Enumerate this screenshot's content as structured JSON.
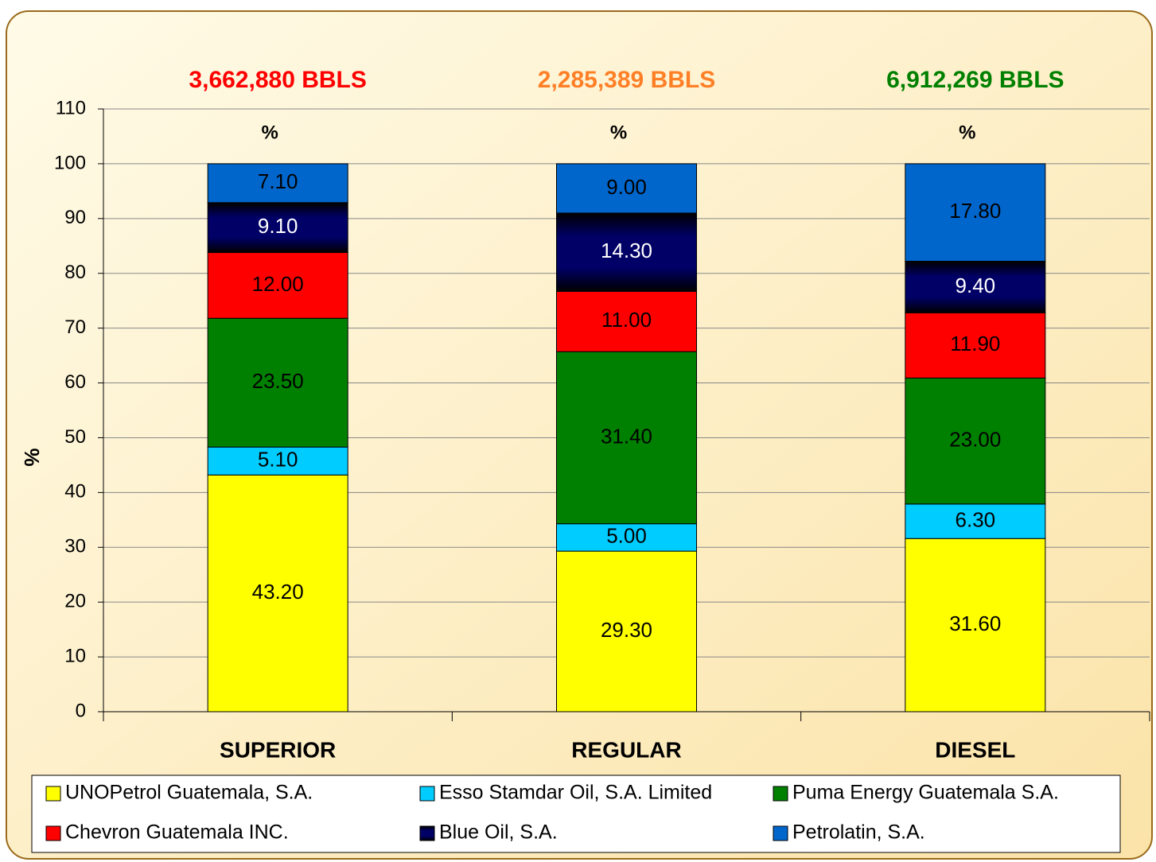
{
  "chart_data": {
    "type": "stacked_bar",
    "annotations": [
      {
        "text": "3,662,880 BBLS",
        "color": "#ff0000"
      },
      {
        "text": "2,285,389 BBLS",
        "color": "#ff7f27"
      },
      {
        "text": "6,912,269 BBLS",
        "color": "#008000"
      }
    ],
    "bar_headers": [
      "%",
      "%",
      "%"
    ],
    "ylabel": "%",
    "categories": [
      "SUPERIOR",
      "REGULAR",
      "DIESEL"
    ],
    "series": [
      {
        "name": "UNOPetrol Guatemala, S.A.",
        "color": "#ffff00",
        "label_color": "#000000",
        "values": [
          43.2,
          29.3,
          31.6
        ],
        "value_labels": [
          "43.20",
          "29.30",
          "31.60"
        ]
      },
      {
        "name": "Esso Stamdar Oil, S.A. Limited",
        "color": "#00ccff",
        "label_color": "#000000",
        "values": [
          5.1,
          5.0,
          6.3
        ],
        "value_labels": [
          "5.10",
          "5.00",
          "6.30"
        ]
      },
      {
        "name": "Puma Energy Guatemala S.A.",
        "color": "#008000",
        "label_color": "#000000",
        "values": [
          23.5,
          31.4,
          23.0
        ],
        "value_labels": [
          "23.50",
          "31.40",
          "23.00"
        ]
      },
      {
        "name": "Chevron Guatemala INC.",
        "color": "#ff0000",
        "label_color": "#000000",
        "values": [
          12.0,
          11.0,
          11.9
        ],
        "value_labels": [
          "12.00",
          "11.00",
          "11.90"
        ]
      },
      {
        "name": "Blue Oil, S.A.",
        "color": "#000066",
        "label_color": "#ffffff",
        "values": [
          9.1,
          14.3,
          9.4
        ],
        "value_labels": [
          "9.10",
          "14.30",
          "9.40"
        ]
      },
      {
        "name": "Petrolatin, S.A.",
        "color": "#0066cc",
        "label_color": "#000000",
        "values": [
          7.1,
          9.0,
          17.8
        ],
        "value_labels": [
          "7.10",
          "9.00",
          "17.80"
        ]
      }
    ],
    "ylim": [
      0,
      110
    ],
    "yticks": [
      0,
      10,
      20,
      30,
      40,
      50,
      60,
      70,
      80,
      90,
      100,
      110
    ],
    "grid": true,
    "legend": "bottom"
  }
}
